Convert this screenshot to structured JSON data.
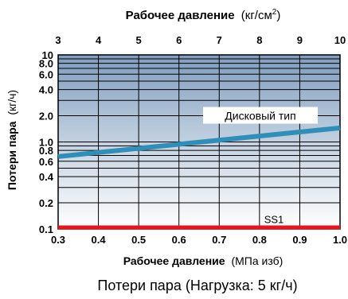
{
  "chart_data": {
    "type": "line",
    "top_axis": {
      "title": "Рабочее давление",
      "unit_prefix": "(кг/см",
      "unit_sup": "2",
      "unit_suffix": ")",
      "range": [
        3,
        10
      ],
      "ticks": [
        "3",
        "4",
        "5",
        "6",
        "7",
        "8",
        "9",
        "10"
      ]
    },
    "x_axis": {
      "title": "Рабочее давление",
      "unit": "(МПа изб)",
      "range": [
        0.3,
        1.0
      ],
      "ticks": [
        "0.3",
        "0.4",
        "0.5",
        "0.6",
        "0.7",
        "0.8",
        "0.9",
        "1.0"
      ]
    },
    "y_axis": {
      "title": "Потери  пара",
      "unit": "(кг/ч)",
      "scale": "log",
      "range": [
        0.1,
        10
      ],
      "ticks": [
        "10",
        "8.0",
        "6.0",
        "4.0",
        "2.0",
        "1.0",
        "0.8",
        "0.6",
        "0.4",
        "0.2",
        "0.1"
      ]
    },
    "series": [
      {
        "name": "Дисковый тип",
        "color": "#2f8fb8",
        "x": [
          0.3,
          1.0
        ],
        "y": [
          0.68,
          1.45
        ]
      },
      {
        "name": "SS1",
        "color": "#e8141c",
        "x": [
          0.3,
          1.0
        ],
        "y": [
          0.1,
          0.1
        ]
      }
    ],
    "caption": "Потери пара (Нагрузка: 5 кг/ч)",
    "colors": {
      "plot_top": "#7f9dbe",
      "plot_bottom": "#ffffff",
      "grid": "#000000"
    }
  }
}
